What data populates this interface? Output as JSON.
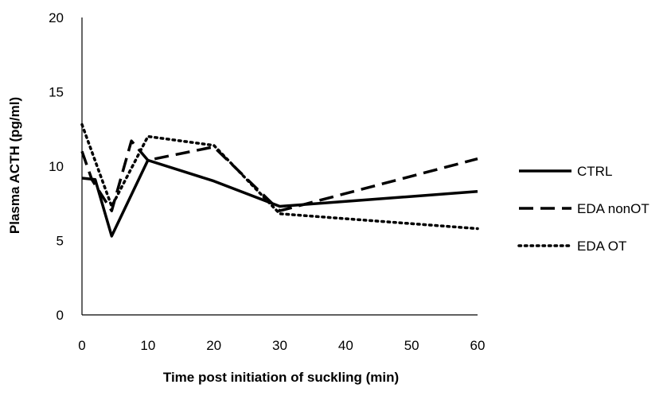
{
  "chart_data": {
    "type": "line",
    "title": "",
    "xlabel": "Time post initiation of suckling (min)",
    "ylabel": "Plasma ACTH (pg/ml)",
    "xlim": [
      0,
      60
    ],
    "ylim": [
      0,
      20
    ],
    "x_ticks": [
      0,
      10,
      20,
      30,
      40,
      50,
      60
    ],
    "y_ticks": [
      0,
      5,
      10,
      15,
      20
    ],
    "x_tick_labels": [
      "0",
      "10",
      "20",
      "30",
      "40",
      "50",
      "60"
    ],
    "y_tick_labels": [
      "0",
      "5",
      "10",
      "15",
      "20"
    ],
    "grid": false,
    "legend_position": "right",
    "series": [
      {
        "name": "CTRL",
        "style": "solid",
        "color": "#000000",
        "points": [
          [
            0,
            9.2
          ],
          [
            2,
            9.1
          ],
          [
            4.5,
            5.3
          ],
          [
            10,
            10.4
          ],
          [
            20,
            9.0
          ],
          [
            30,
            7.3
          ],
          [
            60,
            8.3
          ]
        ]
      },
      {
        "name": "EDA nonOT",
        "style": "dashed",
        "color": "#000000",
        "points": [
          [
            0,
            11.0
          ],
          [
            1.5,
            9.1
          ],
          [
            4.5,
            7.0
          ],
          [
            7.5,
            11.7
          ],
          [
            10,
            10.4
          ],
          [
            20,
            11.3
          ],
          [
            30,
            7.0
          ],
          [
            60,
            10.5
          ]
        ]
      },
      {
        "name": "EDA OT",
        "style": "dotted",
        "color": "#000000",
        "points": [
          [
            0,
            12.8
          ],
          [
            4.5,
            7.3
          ],
          [
            10,
            12.0
          ],
          [
            20,
            11.4
          ],
          [
            30,
            6.8
          ],
          [
            60,
            5.8
          ]
        ]
      }
    ]
  }
}
